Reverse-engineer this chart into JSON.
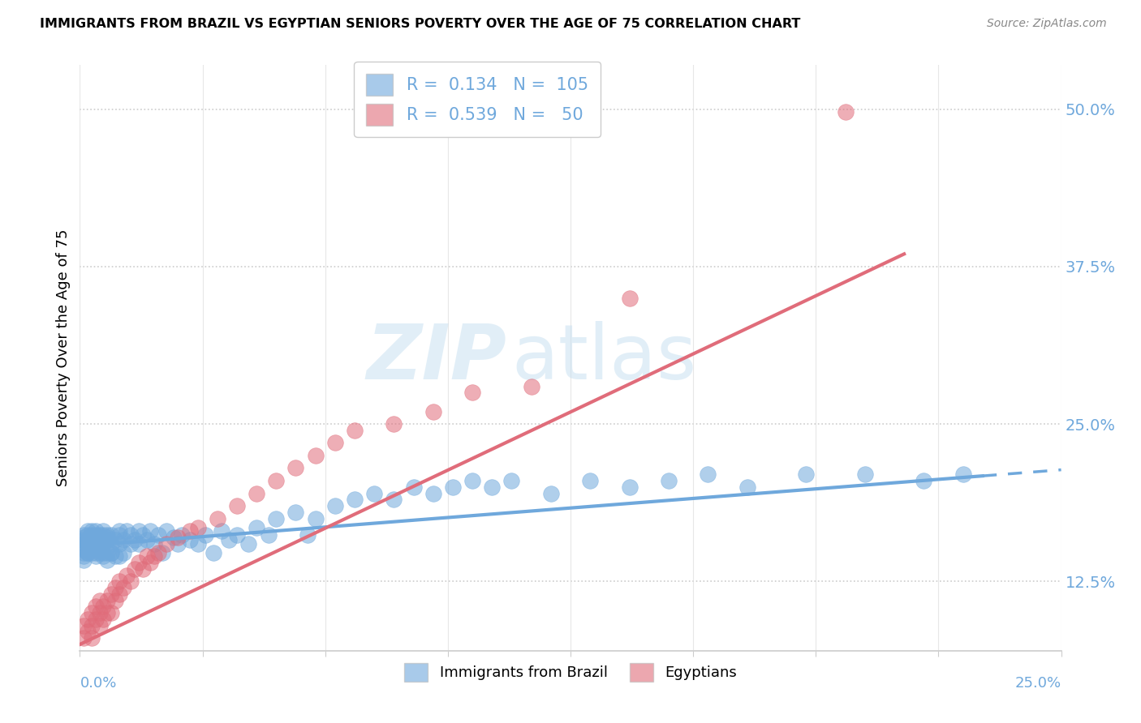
{
  "title": "IMMIGRANTS FROM BRAZIL VS EGYPTIAN SENIORS POVERTY OVER THE AGE OF 75 CORRELATION CHART",
  "source_text": "Source: ZipAtlas.com",
  "ylabel": "Seniors Poverty Over the Age of 75",
  "yticks_labels": [
    "12.5%",
    "25.0%",
    "37.5%",
    "50.0%"
  ],
  "ytick_vals": [
    0.125,
    0.25,
    0.375,
    0.5
  ],
  "xlim": [
    0.0,
    0.25
  ],
  "ylim": [
    0.07,
    0.535
  ],
  "brazil_color": "#6fa8dc",
  "egypt_color": "#e06c7a",
  "brazil_R": 0.134,
  "brazil_N": 105,
  "egypt_R": 0.539,
  "egypt_N": 50,
  "brazil_trend_x0": 0.0,
  "brazil_trend_y0": 0.153,
  "brazil_trend_x1": 0.235,
  "brazil_trend_y1": 0.21,
  "egypt_trend_x0": 0.0,
  "egypt_trend_y0": 0.075,
  "egypt_trend_x1": 0.21,
  "egypt_trend_y1": 0.385,
  "brazil_x": [
    0.001,
    0.001,
    0.001,
    0.001,
    0.001,
    0.001,
    0.001,
    0.002,
    0.002,
    0.002,
    0.002,
    0.002,
    0.002,
    0.003,
    0.003,
    0.003,
    0.003,
    0.003,
    0.004,
    0.004,
    0.004,
    0.004,
    0.004,
    0.005,
    0.005,
    0.005,
    0.005,
    0.005,
    0.006,
    0.006,
    0.006,
    0.006,
    0.007,
    0.007,
    0.007,
    0.007,
    0.008,
    0.008,
    0.008,
    0.009,
    0.009,
    0.01,
    0.01,
    0.01,
    0.011,
    0.011,
    0.012,
    0.013,
    0.013,
    0.014,
    0.015,
    0.015,
    0.016,
    0.017,
    0.018,
    0.019,
    0.02,
    0.021,
    0.022,
    0.024,
    0.025,
    0.026,
    0.028,
    0.03,
    0.032,
    0.034,
    0.036,
    0.038,
    0.04,
    0.043,
    0.045,
    0.048,
    0.05,
    0.055,
    0.058,
    0.06,
    0.065,
    0.07,
    0.075,
    0.08,
    0.085,
    0.09,
    0.095,
    0.1,
    0.105,
    0.11,
    0.12,
    0.13,
    0.14,
    0.15,
    0.16,
    0.17,
    0.185,
    0.2,
    0.215,
    0.225,
    0.001,
    0.002,
    0.003,
    0.004,
    0.005,
    0.006,
    0.007,
    0.008,
    0.01
  ],
  "brazil_y": [
    0.155,
    0.16,
    0.145,
    0.158,
    0.162,
    0.15,
    0.148,
    0.162,
    0.155,
    0.165,
    0.148,
    0.158,
    0.152,
    0.158,
    0.162,
    0.148,
    0.165,
    0.155,
    0.162,
    0.148,
    0.158,
    0.155,
    0.165,
    0.16,
    0.148,
    0.155,
    0.162,
    0.158,
    0.155,
    0.162,
    0.148,
    0.165,
    0.16,
    0.148,
    0.158,
    0.162,
    0.155,
    0.162,
    0.148,
    0.158,
    0.145,
    0.165,
    0.155,
    0.162,
    0.158,
    0.148,
    0.165,
    0.155,
    0.162,
    0.158,
    0.155,
    0.165,
    0.162,
    0.158,
    0.165,
    0.155,
    0.162,
    0.148,
    0.165,
    0.16,
    0.155,
    0.162,
    0.158,
    0.155,
    0.162,
    0.148,
    0.165,
    0.158,
    0.162,
    0.155,
    0.168,
    0.162,
    0.175,
    0.18,
    0.162,
    0.175,
    0.185,
    0.19,
    0.195,
    0.19,
    0.2,
    0.195,
    0.2,
    0.205,
    0.2,
    0.205,
    0.195,
    0.205,
    0.2,
    0.205,
    0.21,
    0.2,
    0.21,
    0.21,
    0.205,
    0.21,
    0.142,
    0.148,
    0.152,
    0.145,
    0.15,
    0.145,
    0.142,
    0.148,
    0.145
  ],
  "egypt_x": [
    0.001,
    0.001,
    0.002,
    0.002,
    0.003,
    0.003,
    0.003,
    0.004,
    0.004,
    0.005,
    0.005,
    0.005,
    0.006,
    0.006,
    0.007,
    0.007,
    0.008,
    0.008,
    0.009,
    0.009,
    0.01,
    0.01,
    0.011,
    0.012,
    0.013,
    0.014,
    0.015,
    0.016,
    0.017,
    0.018,
    0.019,
    0.02,
    0.022,
    0.025,
    0.028,
    0.03,
    0.035,
    0.04,
    0.045,
    0.05,
    0.055,
    0.06,
    0.065,
    0.07,
    0.08,
    0.09,
    0.1,
    0.115,
    0.14,
    0.195
  ],
  "egypt_y": [
    0.08,
    0.09,
    0.085,
    0.095,
    0.09,
    0.1,
    0.08,
    0.095,
    0.105,
    0.1,
    0.09,
    0.11,
    0.095,
    0.105,
    0.11,
    0.1,
    0.115,
    0.1,
    0.11,
    0.12,
    0.115,
    0.125,
    0.12,
    0.13,
    0.125,
    0.135,
    0.14,
    0.135,
    0.145,
    0.14,
    0.145,
    0.148,
    0.155,
    0.16,
    0.165,
    0.168,
    0.175,
    0.185,
    0.195,
    0.205,
    0.215,
    0.225,
    0.235,
    0.245,
    0.25,
    0.26,
    0.275,
    0.28,
    0.35,
    0.498
  ]
}
